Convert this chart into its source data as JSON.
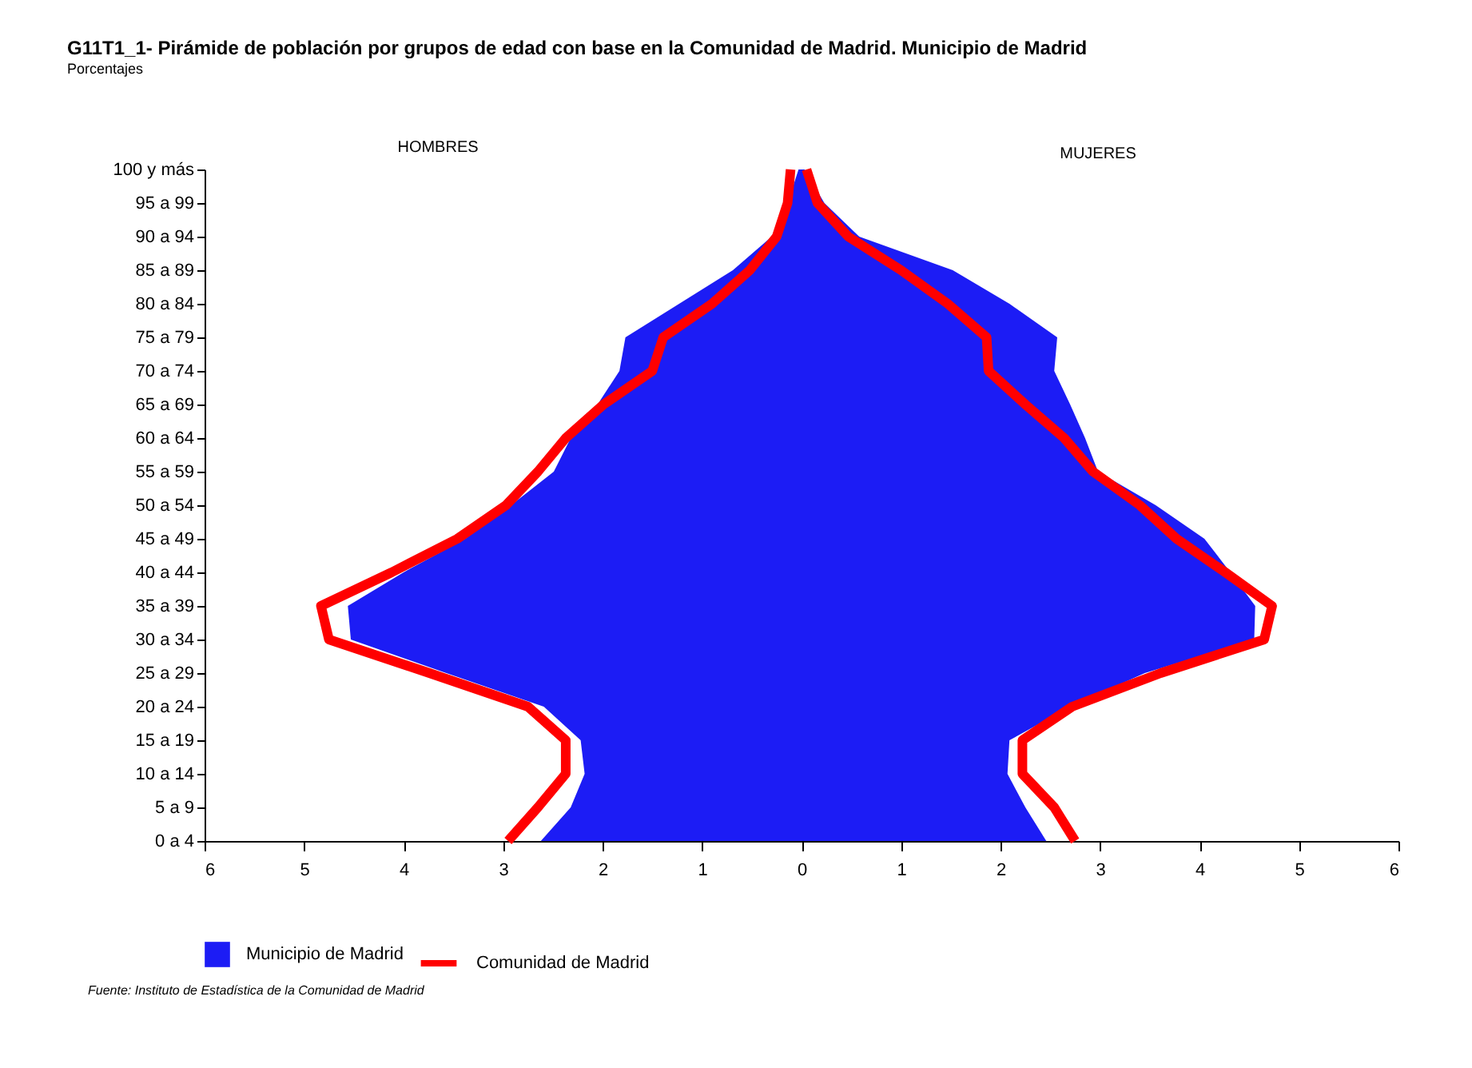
{
  "chart_data": {
    "type": "area",
    "orientation": "horizontal",
    "title": "G11T1_1- Pirámide de población por grupos de edad con base en la Comunidad de Madrid.  Municipio de Madrid",
    "subtitle": "Porcentajes",
    "categories": [
      "100 y más",
      "95 a 99",
      "90 a 94",
      "85 a 89",
      "80 a 84",
      "75 a 79",
      "70 a 74",
      "65 a 69",
      "60 a 64",
      "55 a 59",
      "50 a 54",
      "45 a 49",
      "40 a 44",
      "35 a 39",
      "30 a 34",
      "25 a 29",
      "20 a 24",
      "15 a 19",
      "10 a 14",
      "5 a 9",
      "0 a 4"
    ],
    "series": [
      {
        "name": "Municipio de Madrid",
        "color": "#1c1cf5",
        "values": [
          -0.03,
          -0.14,
          -0.3,
          -0.69,
          -1.23,
          -1.77,
          -1.83,
          -2.05,
          -2.32,
          -2.49,
          -2.92,
          -3.38,
          -4.0,
          -4.56,
          -4.53,
          -3.57,
          -2.59,
          -2.22,
          -2.18,
          -2.32,
          -2.62
        ]
      },
      {
        "color": "#1c1cf5",
        "values": [
          0.03,
          0.23,
          0.58,
          1.52,
          2.09,
          2.57,
          2.54,
          2.7,
          2.85,
          2.98,
          3.56,
          4.05,
          4.31,
          4.56,
          4.55,
          3.45,
          2.7,
          2.09,
          2.07,
          2.25,
          2.46
        ]
      },
      {
        "name": "Comunidad de Madrid",
        "type": "line",
        "color": "#ff0000",
        "values": [
          -0.11,
          -0.14,
          -0.25,
          -0.52,
          -0.9,
          -1.39,
          -1.5,
          -1.99,
          -2.37,
          -2.65,
          -2.97,
          -3.46,
          -4.12,
          -4.83,
          -4.75,
          -3.74,
          -2.75,
          -2.37,
          -2.37,
          -2.65,
          -2.95
        ]
      },
      {
        "type": "line",
        "color": "#ff0000",
        "values": [
          0.05,
          0.16,
          0.47,
          1.0,
          1.47,
          1.86,
          1.88,
          2.25,
          2.64,
          2.93,
          3.4,
          3.77,
          4.26,
          4.73,
          4.65,
          3.61,
          2.72,
          2.22,
          2.22,
          2.54,
          2.75
        ]
      }
    ],
    "xlim": [
      -6,
      6
    ],
    "xticks": [
      {
        "value": -6,
        "label": "6"
      },
      {
        "value": -5,
        "label": "5"
      },
      {
        "value": -4,
        "label": "4"
      },
      {
        "value": -3,
        "label": "3"
      },
      {
        "value": -2,
        "label": "2"
      },
      {
        "value": -1,
        "label": "1"
      },
      0,
      1,
      2,
      3,
      4,
      5,
      6
    ],
    "legend": "bottom",
    "annotations": [
      "HOMBRES",
      "MUJERES",
      "Fuente: Instituto de Estadística de la Comunidad de Madrid"
    ]
  }
}
